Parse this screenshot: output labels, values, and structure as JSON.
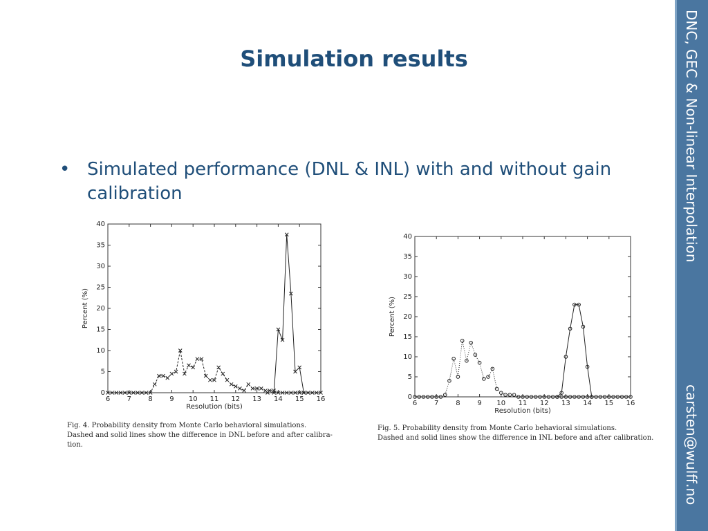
{
  "slide": {
    "title": "Simulation results",
    "bullet": "Simulated performance (DNL & INL) with and without gain calibration",
    "sidebar_title": "DNC, GEC & Non-linear Interpolation",
    "sidebar_email": "carsten@wulff.no",
    "colors": {
      "title": "#1f4e79",
      "sidebar": "#4a76a0"
    }
  },
  "chart_data": [
    {
      "type": "line",
      "xlabel": "Resolution (bits)",
      "ylabel": "Percent (%)",
      "xlim": [
        6,
        16
      ],
      "ylim": [
        0,
        40
      ],
      "xticks": [
        6,
        7,
        8,
        9,
        10,
        11,
        12,
        13,
        14,
        15,
        16
      ],
      "yticks": [
        0,
        5,
        10,
        15,
        20,
        25,
        30,
        35,
        40
      ],
      "caption": [
        "Fig. 4.   Probability density from Monte Carlo behavioral simulations.",
        "Dashed and solid lines show the difference in DNL before and after calibra-",
        "tion."
      ],
      "series": [
        {
          "style": "dashed",
          "marker": "x",
          "x": [
            6,
            6.2,
            6.4,
            6.6,
            6.8,
            7,
            7.2,
            7.4,
            7.6,
            7.8,
            8,
            8.2,
            8.4,
            8.6,
            8.8,
            9,
            9.2,
            9.4,
            9.6,
            9.8,
            10,
            10.2,
            10.4,
            10.6,
            10.8,
            11,
            11.2,
            11.4,
            11.6,
            11.8,
            12,
            12.2,
            12.4,
            12.6,
            12.8,
            13,
            13.2,
            13.4,
            13.6,
            13.8,
            14,
            14.2,
            14.4,
            14.6,
            14.8,
            15,
            15.2,
            15.4,
            15.6,
            15.8,
            16
          ],
          "y": [
            0,
            0,
            0,
            0,
            0,
            0,
            0,
            0,
            0,
            0,
            0,
            2,
            4,
            4,
            3.5,
            4.5,
            5,
            10,
            4.5,
            6.5,
            6,
            8,
            8,
            4,
            3,
            3,
            6,
            4.5,
            3,
            2,
            1.5,
            1,
            0.5,
            2,
            1,
            1,
            1,
            0.5,
            0.5,
            0.5,
            0,
            0,
            0,
            0,
            0,
            0,
            0,
            0,
            0,
            0,
            0
          ]
        },
        {
          "style": "solid",
          "marker": "x",
          "x": [
            13.5,
            13.8,
            14,
            14.2,
            14.4,
            14.6,
            14.8,
            15,
            15.2
          ],
          "y": [
            0,
            0,
            15,
            12.5,
            37.5,
            23.5,
            5,
            6,
            0
          ]
        }
      ]
    },
    {
      "type": "line",
      "xlabel": "Resolution (bits)",
      "ylabel": "Percent (%)",
      "xlim": [
        6,
        16
      ],
      "ylim": [
        0,
        40
      ],
      "xticks": [
        6,
        7,
        8,
        9,
        10,
        11,
        12,
        13,
        14,
        15,
        16
      ],
      "yticks": [
        0,
        5,
        10,
        15,
        20,
        25,
        30,
        35,
        40
      ],
      "caption": [
        "Fig. 5.   Probability density from Monte Carlo behavioral simulations.",
        "Dashed and solid lines show the difference in INL before and after calibration."
      ],
      "series": [
        {
          "style": "dotted",
          "marker": "o",
          "x": [
            6,
            6.2,
            6.4,
            6.6,
            6.8,
            7,
            7.2,
            7.4,
            7.6,
            7.8,
            8,
            8.2,
            8.4,
            8.6,
            8.8,
            9,
            9.2,
            9.4,
            9.6,
            9.8,
            10,
            10.2,
            10.4,
            10.6,
            10.8,
            11,
            11.2,
            11.4,
            11.6,
            11.8,
            12,
            12.2,
            12.4,
            12.6,
            12.8,
            13,
            13.2,
            13.4,
            13.6,
            13.8,
            14,
            14.2,
            14.4,
            14.6,
            14.8,
            15,
            15.2,
            15.4,
            15.6,
            15.8,
            16
          ],
          "y": [
            0,
            0,
            0,
            0,
            0,
            0,
            0,
            0.5,
            4,
            9.5,
            5,
            14,
            9,
            13.5,
            10.5,
            8.5,
            4.5,
            5,
            7,
            2,
            1,
            0.5,
            0.5,
            0.5,
            0,
            0,
            0,
            0,
            0,
            0,
            0,
            0,
            0,
            0,
            0,
            0,
            0,
            0,
            0,
            0,
            0,
            0,
            0,
            0,
            0,
            0,
            0,
            0,
            0,
            0,
            0
          ]
        },
        {
          "style": "solid",
          "marker": "o",
          "x": [
            12.6,
            12.8,
            13,
            13.2,
            13.4,
            13.6,
            13.8,
            14,
            14.2
          ],
          "y": [
            0,
            1,
            10,
            17,
            23,
            23,
            17.5,
            7.5,
            0
          ]
        }
      ]
    }
  ]
}
